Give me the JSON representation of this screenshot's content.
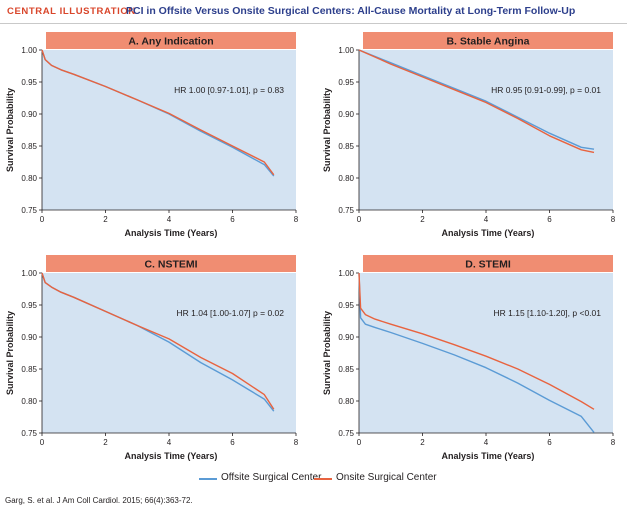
{
  "header": {
    "tag": "CENTRAL ILLUSTRATION",
    "title": "PCI in Offsite Versus Onsite Surgical Centers: All-Cause Mortality at Long-Term Follow-Up"
  },
  "colors": {
    "offsite": "#5b9bd5",
    "onsite": "#e8633f",
    "panel_title_bg": "#f08d72",
    "plot_bg": "#d4e3f2"
  },
  "legend": {
    "offsite_label": "Offsite Surgical Center",
    "onsite_label": "Onsite Surgical Center"
  },
  "citation": "Garg, S. et al. J Am Coll Cardiol. 2015; 66(4):363-72.",
  "chart_data": [
    {
      "type": "line",
      "title": "A. Any Indication",
      "xlabel": "Analysis Time (Years)",
      "ylabel": "Survival Probability",
      "xlim": [
        0,
        8
      ],
      "ylim": [
        0.75,
        1.0
      ],
      "xticks": [
        "0",
        "2",
        "4",
        "6",
        "8"
      ],
      "yticks": [
        "0.75",
        "0.80",
        "0.85",
        "0.90",
        "0.95",
        "1.00"
      ],
      "annotation": "HR 1.00 [0.97-1.01], p = 0.83",
      "series": [
        {
          "name": "Offsite Surgical Center",
          "x": [
            0,
            0.1,
            0.3,
            0.6,
            1,
            2,
            3,
            4,
            5,
            6,
            7,
            7.3
          ],
          "y": [
            1.0,
            0.985,
            0.976,
            0.969,
            0.962,
            0.943,
            0.922,
            0.9,
            0.873,
            0.848,
            0.821,
            0.803
          ]
        },
        {
          "name": "Onsite Surgical Center",
          "x": [
            0,
            0.1,
            0.3,
            0.6,
            1,
            2,
            3,
            4,
            5,
            6,
            7,
            7.3
          ],
          "y": [
            1.0,
            0.985,
            0.976,
            0.969,
            0.962,
            0.943,
            0.922,
            0.901,
            0.875,
            0.85,
            0.825,
            0.805
          ]
        }
      ]
    },
    {
      "type": "line",
      "title": "B. Stable Angina",
      "xlabel": "Analysis Time (Years)",
      "ylabel": "Survival Probability",
      "xlim": [
        0,
        8
      ],
      "ylim": [
        0.75,
        1.0
      ],
      "xticks": [
        "0",
        "2",
        "4",
        "6",
        "8"
      ],
      "yticks": [
        "0.75",
        "0.80",
        "0.85",
        "0.90",
        "0.95",
        "1.00"
      ],
      "annotation": "HR 0.95 [0.91-0.99], p = 0.01",
      "series": [
        {
          "name": "Offsite Surgical Center",
          "x": [
            0,
            0.5,
            1,
            2,
            3,
            4,
            5,
            6,
            7,
            7.4
          ],
          "y": [
            1.0,
            0.99,
            0.98,
            0.96,
            0.94,
            0.92,
            0.895,
            0.87,
            0.848,
            0.845
          ]
        },
        {
          "name": "Onsite Surgical Center",
          "x": [
            0,
            0.5,
            1,
            2,
            3,
            4,
            5,
            6,
            7,
            7.4
          ],
          "y": [
            1.0,
            0.989,
            0.978,
            0.958,
            0.938,
            0.918,
            0.893,
            0.866,
            0.844,
            0.84
          ]
        }
      ]
    },
    {
      "type": "line",
      "title": "C. NSTEMI",
      "xlabel": "Analysis Time (Years)",
      "ylabel": "Survival Probability",
      "xlim": [
        0,
        8
      ],
      "ylim": [
        0.75,
        1.0
      ],
      "xticks": [
        "0",
        "2",
        "4",
        "6",
        "8"
      ],
      "yticks": [
        "0.75",
        "0.80",
        "0.85",
        "0.90",
        "0.95",
        "1.00"
      ],
      "annotation": "HR 1.04 [1.00-1.07] p = 0.02",
      "series": [
        {
          "name": "Offsite Surgical Center",
          "x": [
            0,
            0.1,
            0.3,
            0.6,
            1,
            2,
            3,
            4,
            5,
            6,
            6.5,
            7,
            7.3
          ],
          "y": [
            1.0,
            0.985,
            0.978,
            0.97,
            0.962,
            0.94,
            0.918,
            0.892,
            0.86,
            0.833,
            0.818,
            0.803,
            0.784
          ]
        },
        {
          "name": "Onsite Surgical Center",
          "x": [
            0,
            0.1,
            0.3,
            0.6,
            1,
            2,
            3,
            4,
            5,
            6,
            7,
            7.3
          ],
          "y": [
            1.0,
            0.985,
            0.978,
            0.97,
            0.962,
            0.94,
            0.918,
            0.897,
            0.868,
            0.843,
            0.81,
            0.787
          ]
        }
      ]
    },
    {
      "type": "line",
      "title": "D. STEMI",
      "xlabel": "Analysis Time (Years)",
      "ylabel": "Survival Probability",
      "xlim": [
        0,
        8
      ],
      "ylim": [
        0.75,
        1.0
      ],
      "xticks": [
        "0",
        "2",
        "4",
        "6",
        "8"
      ],
      "yticks": [
        "0.75",
        "0.80",
        "0.85",
        "0.90",
        "0.95",
        "1.00"
      ],
      "annotation": "HR 1.15 [1.10-1.20], p <0.01",
      "series": [
        {
          "name": "Offsite Surgical Center",
          "x": [
            0,
            0.05,
            0.2,
            0.5,
            1,
            2,
            3,
            4,
            5,
            6,
            7,
            7.4
          ],
          "y": [
            1.0,
            0.93,
            0.92,
            0.915,
            0.907,
            0.89,
            0.872,
            0.852,
            0.828,
            0.801,
            0.776,
            0.751
          ]
        },
        {
          "name": "Onsite Surgical Center",
          "x": [
            0,
            0.05,
            0.2,
            0.5,
            1,
            2,
            3,
            4,
            5,
            6,
            7,
            7.4
          ],
          "y": [
            1.0,
            0.945,
            0.935,
            0.928,
            0.92,
            0.905,
            0.888,
            0.87,
            0.85,
            0.826,
            0.799,
            0.787
          ]
        }
      ]
    }
  ]
}
